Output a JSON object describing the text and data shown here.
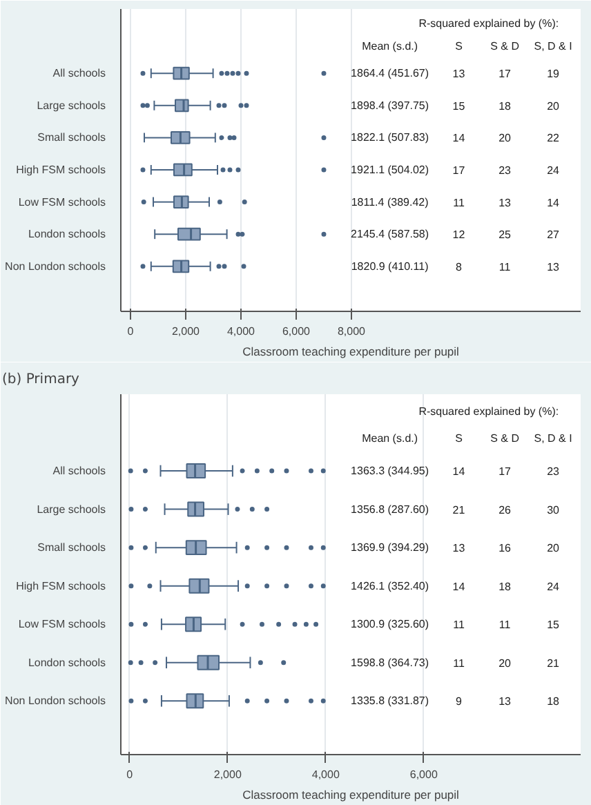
{
  "chart_data": [
    {
      "type": "box",
      "orientation": "horizontal",
      "xlabel": "Classroom teaching expenditure per pupil",
      "categories": [
        "All schools",
        "Large schools",
        "Small schools",
        "High FSM schools",
        "Low FSM schools",
        "London schools",
        "Non London schools"
      ],
      "series": [
        {
          "color": "#8da2bd",
          "boxes": [
            {
              "low": 745,
              "q1": 1560,
              "median": 1840,
              "q3": 2120,
              "high": 2990,
              "outliers": [
                450,
                3300,
                3500,
                3700,
                3900,
                4200,
                7000
              ]
            },
            {
              "low": 860,
              "q1": 1625,
              "median": 1925,
              "q3": 2090,
              "high": 2890,
              "outliers": [
                450,
                610,
                3200,
                3400,
                4000,
                4200
              ]
            },
            {
              "low": 500,
              "q1": 1475,
              "median": 1810,
              "q3": 2140,
              "high": 3070,
              "outliers": [
                3300,
                3600,
                3750,
                7000
              ]
            },
            {
              "low": 745,
              "q1": 1575,
              "median": 1940,
              "q3": 2220,
              "high": 3150,
              "outliers": [
                450,
                3350,
                3600,
                3900,
                7000
              ]
            },
            {
              "low": 825,
              "q1": 1575,
              "median": 1860,
              "q3": 2090,
              "high": 2850,
              "outliers": [
                480,
                3235,
                4130
              ]
            },
            {
              "low": 880,
              "q1": 1725,
              "median": 2190,
              "q3": 2520,
              "high": 3490,
              "outliers": [
                3900,
                4050,
                7000
              ]
            },
            {
              "low": 745,
              "q1": 1545,
              "median": 1840,
              "q3": 2105,
              "high": 2890,
              "outliers": [
                450,
                3200,
                3400,
                4100
              ]
            }
          ]
        }
      ],
      "xlim": [
        -350,
        16300
      ],
      "xticks": [
        0,
        {
          "value": 2000,
          "label": "2,000"
        },
        {
          "value": 4000,
          "label": "4,000"
        },
        {
          "value": 6000,
          "label": "6,000"
        },
        {
          "value": 8000,
          "label": "8,000"
        }
      ],
      "grid": "x",
      "annotations": [
        "R-squared explained by (%):",
        "Mean (s.d.)",
        "S",
        "S & D",
        "S, D & I",
        "1864.4 (451.67)",
        "13",
        "17",
        "19",
        "1898.4 (397.75)",
        "15",
        "18",
        "20",
        "1822.1 (507.83)",
        "14",
        "20",
        "22",
        "1921.1 (504.02)",
        "17",
        "23",
        "24",
        "1811.4 (389.42)",
        "11",
        "13",
        "14",
        "2145.4 (587.58)",
        "12",
        "25",
        "27",
        "1820.9 (410.11)",
        "8",
        "11",
        "13"
      ]
    },
    {
      "type": "box",
      "orientation": "horizontal",
      "title": "(b) Primary",
      "xlabel": "Classroom teaching expenditure per pupil",
      "categories": [
        "All schools",
        "Large schools",
        "Small schools",
        "High FSM schools",
        "Low FSM schools",
        "London schools",
        "Non London schools"
      ],
      "series": [
        {
          "color": "#8da2bd",
          "boxes": [
            {
              "low": 630,
              "q1": 1165,
              "median": 1335,
              "q3": 1540,
              "high": 2100,
              "outliers": [
                20,
                320,
                2300,
                2600,
                2900,
                3200,
                3700,
                3950
              ]
            },
            {
              "low": 715,
              "q1": 1190,
              "median": 1335,
              "q3": 1510,
              "high": 2010,
              "outliers": [
                30,
                320,
                2200,
                2500,
                2800
              ]
            },
            {
              "low": 535,
              "q1": 1155,
              "median": 1350,
              "q3": 1560,
              "high": 2180,
              "outliers": [
                30,
                320,
                2400,
                2800,
                3200,
                3700,
                3950
              ]
            },
            {
              "low": 630,
              "q1": 1220,
              "median": 1430,
              "q3": 1615,
              "high": 2215,
              "outliers": [
                30,
                410,
                2400,
                2800,
                3200,
                3700,
                3950
              ]
            },
            {
              "low": 650,
              "q1": 1145,
              "median": 1305,
              "q3": 1455,
              "high": 1950,
              "outliers": [
                30,
                320,
                2300,
                2700,
                3040,
                3370,
                3600,
                3800
              ]
            },
            {
              "low": 750,
              "q1": 1390,
              "median": 1595,
              "q3": 1820,
              "high": 2460,
              "outliers": [
                20,
                230,
                520,
                2670,
                3140
              ]
            },
            {
              "low": 650,
              "q1": 1165,
              "median": 1345,
              "q3": 1500,
              "high": 2030,
              "outliers": [
                30,
                320,
                2400,
                2800,
                3200,
                3700,
                3950
              ]
            }
          ]
        }
      ],
      "xlim": [
        -180,
        9200
      ],
      "xticks": [
        0,
        {
          "value": 2000,
          "label": "2,000"
        },
        {
          "value": 4000,
          "label": "4,000"
        },
        {
          "value": 6000,
          "label": "6,000"
        }
      ],
      "grid": "x",
      "annotations": [
        "R-squared explained by (%):",
        "Mean (s.d.)",
        "S",
        "S & D",
        "S, D & I",
        "1363.3 (344.95)",
        "14",
        "17",
        "23",
        "1356.8 (287.60)",
        "21",
        "26",
        "30",
        "1369.9 (394.29)",
        "13",
        "16",
        "20",
        "1426.1 (352.40)",
        "14",
        "18",
        "24",
        "1300.9 (325.60)",
        "11",
        "11",
        "15",
        "1598.8 (364.73)",
        "11",
        "20",
        "21",
        "1335.8 (331.87)",
        "9",
        "13",
        "18"
      ]
    }
  ]
}
